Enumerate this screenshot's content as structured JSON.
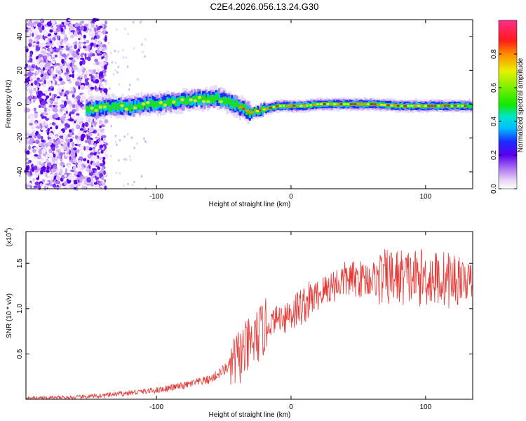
{
  "title": "C2E4.2026.056.13.24.G30",
  "chart_data": [
    {
      "type": "heatmap",
      "xlabel": "Height of straight line (km)",
      "ylabel": "Frequency (Hz)",
      "xlim": [
        -197,
        135
      ],
      "ylim": [
        -50,
        50
      ],
      "xticks": [
        -100,
        0,
        100
      ],
      "yticks": [
        -40,
        -20,
        0,
        20,
        40
      ],
      "colorbar": {
        "label": "Normalized spectral amplitude",
        "range": [
          0,
          1
        ],
        "ticks": [
          0.0,
          0.2,
          0.4,
          0.6,
          0.8
        ]
      },
      "ridge": {
        "x": [
          -152,
          -140,
          -130,
          -120,
          -110,
          -100,
          -90,
          -80,
          -70,
          -60,
          -55,
          -50,
          -45,
          -40,
          -35,
          -30,
          -25,
          -20,
          -15,
          -10,
          0,
          10,
          20,
          40,
          60,
          80,
          100,
          120,
          135
        ],
        "freq": [
          -3,
          -2,
          -1,
          -2,
          0,
          0,
          1,
          2,
          3,
          3,
          4,
          2,
          1,
          -1,
          -3,
          -5,
          -4,
          -3,
          -2,
          -1,
          -1,
          -1,
          0,
          0,
          0,
          -1,
          -1,
          -1,
          -1
        ]
      }
    },
    {
      "type": "line",
      "xlabel": "Height of straight line (km)",
      "ylabel": "SNR (10 * v/v)",
      "y_scale_note": "(x10",
      "y_scale_exponent": "4",
      "xlim": [
        -197,
        135
      ],
      "ylim": [
        0,
        1.85
      ],
      "xticks": [
        -100,
        0,
        100
      ],
      "yticks": [
        0.5,
        1.0,
        1.5
      ],
      "color": "#e53935",
      "trend": {
        "x": [
          -197,
          -160,
          -140,
          -120,
          -100,
          -80,
          -60,
          -50,
          -40,
          -30,
          -20,
          -10,
          0,
          10,
          20,
          30,
          40,
          60,
          80,
          100,
          120,
          135
        ],
        "y": [
          0.01,
          0.02,
          0.04,
          0.07,
          0.1,
          0.15,
          0.22,
          0.32,
          0.45,
          0.6,
          0.78,
          0.9,
          0.95,
          1.05,
          1.15,
          1.25,
          1.32,
          1.33,
          1.35,
          1.34,
          1.32,
          1.3
        ]
      }
    }
  ]
}
